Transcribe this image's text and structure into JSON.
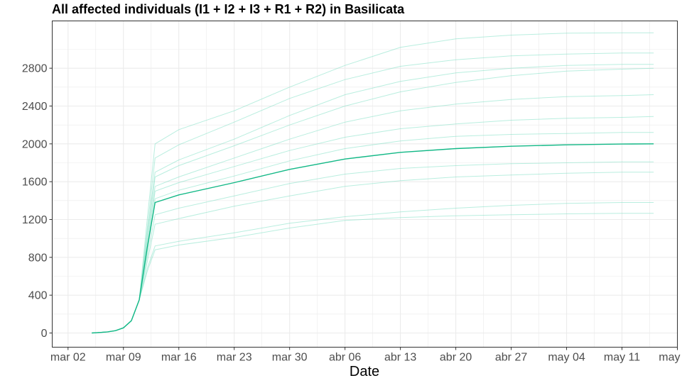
{
  "chart_data": {
    "type": "line",
    "title": "All affected individuals (I1 + I2 + I3 + R1 + R2) in  Basilicata",
    "xlabel": "Date",
    "ylabel": "",
    "x_ticks": [
      "mar 02",
      "mar 09",
      "mar 16",
      "mar 23",
      "mar 30",
      "abr 06",
      "abr 13",
      "abr 20",
      "abr 27",
      "may 04",
      "may 11",
      "may 18"
    ],
    "x_tick_dates": [
      "2020-03-02",
      "2020-03-09",
      "2020-03-16",
      "2020-03-23",
      "2020-03-30",
      "2020-04-06",
      "2020-04-13",
      "2020-04-20",
      "2020-04-27",
      "2020-05-04",
      "2020-05-11",
      "2020-05-18"
    ],
    "y_ticks": [
      0,
      400,
      800,
      1200,
      1600,
      2000,
      2400,
      2800
    ],
    "xlim": [
      "2020-02-29",
      "2020-05-18"
    ],
    "ylim": [
      -150,
      3300
    ],
    "grid": true,
    "colors": {
      "main_line": "#12b886",
      "ensemble_line": "#7fe0c4",
      "panel_border": "#333333",
      "grid": "#ebebeb"
    },
    "x": [
      "2020-03-05",
      "2020-03-06",
      "2020-03-07",
      "2020-03-08",
      "2020-03-09",
      "2020-03-10",
      "2020-03-11",
      "2020-03-12",
      "2020-03-13",
      "2020-03-16",
      "2020-03-23",
      "2020-03-30",
      "2020-04-06",
      "2020-04-13",
      "2020-04-20",
      "2020-04-27",
      "2020-05-04",
      "2020-05-11",
      "2020-05-15"
    ],
    "series": [
      {
        "values": [
          0,
          5,
          12,
          25,
          55,
          130,
          350,
          900,
          1380,
          1460,
          1590,
          1730,
          1840,
          1910,
          1950,
          1975,
          1990,
          1998,
          2000
        ]
      },
      {
        "values": [
          0,
          5,
          12,
          25,
          55,
          130,
          350,
          1200,
          2000,
          2150,
          2350,
          2600,
          2830,
          3020,
          3110,
          3150,
          3170,
          3175,
          3175
        ]
      },
      {
        "values": [
          0,
          5,
          12,
          25,
          55,
          130,
          350,
          1100,
          1850,
          1990,
          2230,
          2480,
          2680,
          2820,
          2890,
          2930,
          2950,
          2960,
          2960
        ]
      },
      {
        "values": [
          0,
          5,
          12,
          25,
          55,
          130,
          350,
          1000,
          1650,
          1770,
          1980,
          2200,
          2400,
          2550,
          2650,
          2720,
          2770,
          2790,
          2800
        ]
      },
      {
        "values": [
          0,
          5,
          12,
          25,
          55,
          130,
          350,
          950,
          1550,
          1650,
          1850,
          2050,
          2230,
          2350,
          2420,
          2470,
          2500,
          2510,
          2520
        ]
      },
      {
        "values": [
          0,
          5,
          12,
          25,
          55,
          130,
          350,
          900,
          1500,
          1590,
          1760,
          1930,
          2070,
          2160,
          2210,
          2250,
          2270,
          2280,
          2290
        ]
      },
      {
        "values": [
          0,
          5,
          12,
          25,
          55,
          130,
          350,
          850,
          1420,
          1510,
          1660,
          1820,
          1950,
          2030,
          2080,
          2100,
          2110,
          2120,
          2120
        ]
      },
      {
        "values": [
          0,
          5,
          12,
          25,
          55,
          130,
          350,
          800,
          1250,
          1320,
          1450,
          1580,
          1680,
          1740,
          1770,
          1790,
          1800,
          1810,
          1810
        ]
      },
      {
        "values": [
          0,
          5,
          12,
          25,
          55,
          130,
          350,
          750,
          1150,
          1210,
          1340,
          1450,
          1550,
          1610,
          1650,
          1670,
          1690,
          1700,
          1700
        ]
      },
      {
        "values": [
          0,
          5,
          12,
          25,
          55,
          130,
          350,
          650,
          880,
          930,
          1010,
          1110,
          1190,
          1220,
          1240,
          1250,
          1260,
          1265,
          1265
        ]
      },
      {
        "values": [
          0,
          5,
          12,
          25,
          55,
          130,
          350,
          680,
          920,
          970,
          1060,
          1160,
          1230,
          1280,
          1320,
          1350,
          1370,
          1380,
          1380
        ]
      },
      {
        "values": [
          0,
          5,
          12,
          25,
          55,
          130,
          350,
          1050,
          1700,
          1830,
          2050,
          2300,
          2520,
          2660,
          2750,
          2800,
          2830,
          2840,
          2840
        ]
      }
    ]
  }
}
